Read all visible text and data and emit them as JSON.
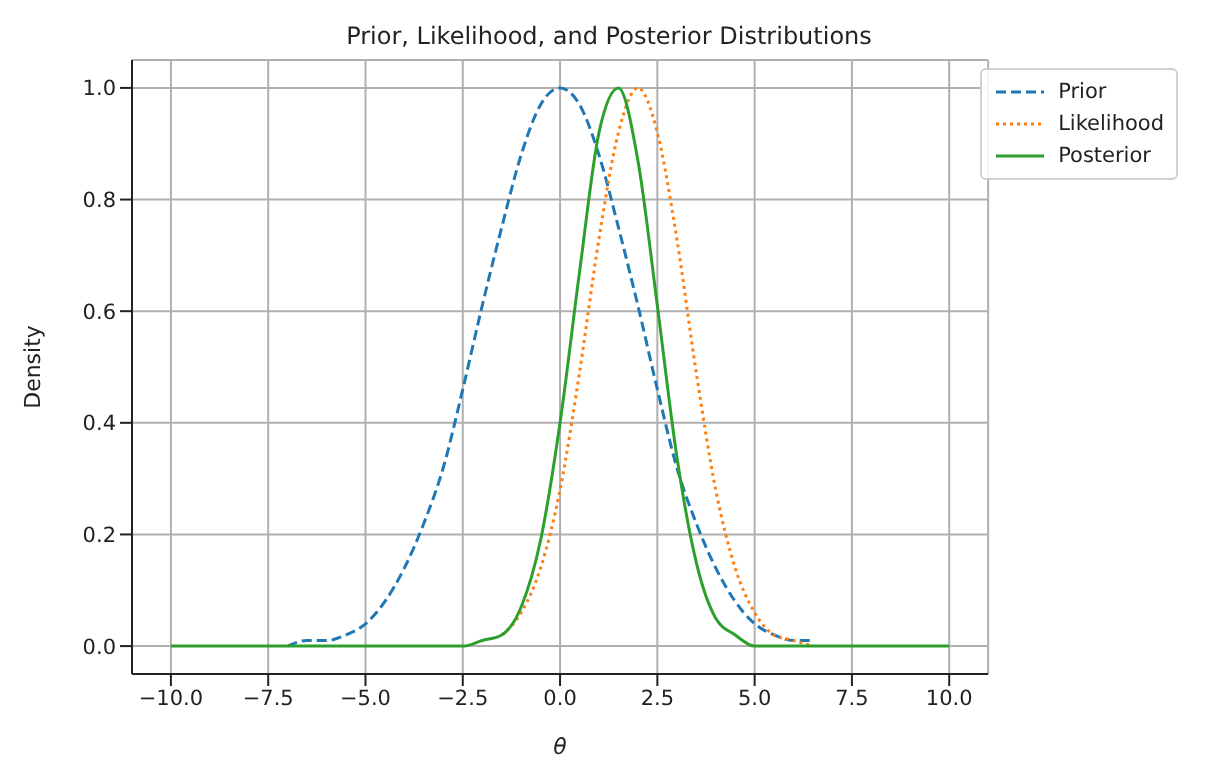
{
  "chart_data": {
    "type": "line",
    "title": "Prior, Likelihood, and Posterior Distributions",
    "xlabel": "θ",
    "ylabel": "Density",
    "x": [
      -10,
      -9.5,
      -9,
      -8.5,
      -8,
      -7.5,
      -7,
      -6.5,
      -6,
      -5.5,
      -5,
      -4.5,
      -4,
      -3.5,
      -3,
      -2.5,
      -2,
      -1.5,
      -1,
      -0.5,
      0,
      0.5,
      1,
      1.5,
      2,
      2.5,
      3,
      3.5,
      4,
      4.5,
      5,
      5.5,
      6,
      6.5,
      7,
      7.5,
      8,
      8.5,
      9,
      9.5,
      10
    ],
    "series": [
      {
        "name": "Prior",
        "color": "#1f77b4",
        "line_style": "dashed",
        "values": [
          null,
          null,
          null,
          null,
          null,
          null,
          0,
          0.01,
          0.01,
          0.02,
          0.04,
          0.08,
          0.14,
          0.22,
          0.32,
          0.46,
          0.61,
          0.75,
          0.88,
          0.97,
          1,
          0.97,
          0.88,
          0.75,
          0.61,
          0.46,
          0.32,
          0.22,
          0.14,
          0.08,
          0.04,
          0.02,
          0.01,
          0.01,
          null,
          null,
          null,
          null,
          null,
          null,
          null
        ]
      },
      {
        "name": "Likelihood",
        "color": "#ff7f0e",
        "line_style": "dotted",
        "values": [
          null,
          null,
          null,
          null,
          null,
          null,
          null,
          null,
          null,
          null,
          null,
          null,
          null,
          null,
          null,
          null,
          null,
          0.02,
          0.06,
          0.14,
          0.28,
          0.49,
          0.73,
          0.92,
          1,
          0.92,
          0.73,
          0.49,
          0.28,
          0.14,
          0.06,
          0.02,
          0.01,
          0,
          null,
          null,
          null,
          null,
          null,
          null,
          null
        ]
      },
      {
        "name": "Posterior",
        "color": "#2ca02c",
        "line_style": "solid",
        "values": [
          0,
          0,
          0,
          0,
          0,
          0,
          0,
          0,
          0,
          0,
          0,
          0,
          0,
          0,
          0,
          0,
          0.01,
          0.02,
          0.07,
          0.19,
          0.4,
          0.67,
          0.92,
          1,
          0.87,
          0.61,
          0.34,
          0.15,
          0.05,
          0.02,
          0,
          0,
          0,
          0,
          0,
          0,
          0,
          0,
          0,
          0,
          0
        ]
      }
    ],
    "xlim": [
      -11,
      11
    ],
    "xticks": [
      {
        "value": -10,
        "label": "−10.0"
      },
      {
        "value": -7.5,
        "label": "−7.5"
      },
      {
        "value": -5,
        "label": "−5.0"
      },
      {
        "value": -2.5,
        "label": "−2.5"
      },
      {
        "value": 0,
        "label": "0.0"
      },
      {
        "value": 2.5,
        "label": "2.5"
      },
      {
        "value": 5,
        "label": "5.0"
      },
      {
        "value": 7.5,
        "label": "7.5"
      },
      {
        "value": 10,
        "label": "10.0"
      }
    ],
    "ylim": [
      -0.05,
      1.05
    ],
    "yticks": [
      {
        "value": 0,
        "label": "0.0"
      },
      {
        "value": 0.2,
        "label": "0.2"
      },
      {
        "value": 0.4,
        "label": "0.4"
      },
      {
        "value": 0.6,
        "label": "0.6"
      },
      {
        "value": 0.8,
        "label": "0.8"
      },
      {
        "value": 1,
        "label": "1.0"
      }
    ],
    "grid": true,
    "legend": "top right",
    "marker": "none"
  }
}
